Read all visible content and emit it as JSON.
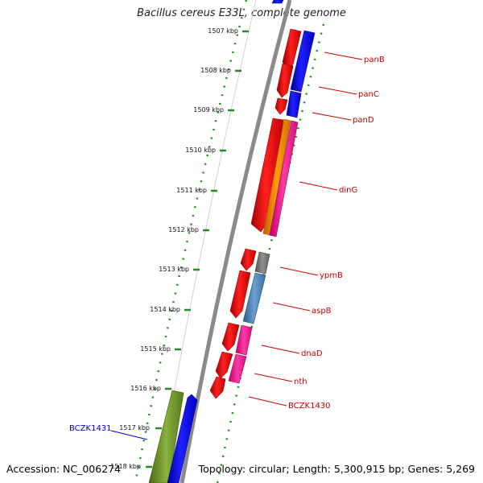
{
  "title": "Bacillus cereus E33L, complete genome",
  "accession_text": "Accession: NC_006274",
  "topology_text": "Topology: circular; Length: 5,300,915 bp; Genes: 5,269",
  "scale_ticks": [
    "1507 kbp",
    "1508 kbp",
    "1509 kbp",
    "1510 kbp",
    "1511 kbp",
    "1512 kbp",
    "1513 kbp",
    "1514 kbp",
    "1515 kbp",
    "1516 kbp",
    "1517 kbp",
    "1518 kbp"
  ],
  "gene_labels": [
    {
      "name": "panB",
      "color": "#c00000"
    },
    {
      "name": "panC",
      "color": "#c00000"
    },
    {
      "name": "panD",
      "color": "#c00000"
    },
    {
      "name": "dinG",
      "color": "#c00000"
    },
    {
      "name": "ypmB",
      "color": "#c00000"
    },
    {
      "name": "aspB",
      "color": "#c00000"
    },
    {
      "name": "dnaD",
      "color": "#c00000"
    },
    {
      "name": "nth",
      "color": "#c00000"
    },
    {
      "name": "BCZK1430",
      "color": "#c00000"
    },
    {
      "name": "BCZK1431",
      "color": "#0000cc"
    }
  ],
  "colors": {
    "cds_red": "#ff0000",
    "cds_blue": "#0000ff",
    "orange": "#ff8c00",
    "magenta": "#ff1493",
    "gray": "#707070",
    "steelblue": "#4682b4",
    "olive": "#6b8e23",
    "tick_green": "#228b22",
    "backbone": "#888888"
  }
}
